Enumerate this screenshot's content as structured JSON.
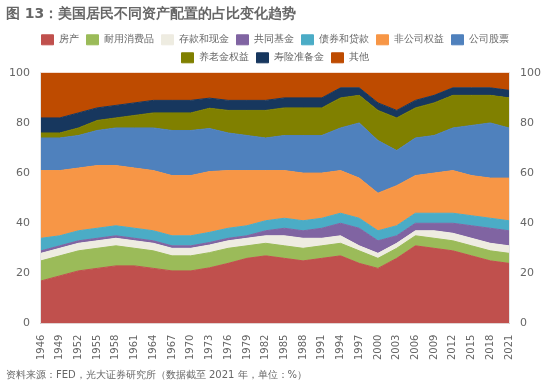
{
  "chart_data": {
    "type": "area",
    "title": "图 13：美国居民不同资产配置的占比变化趋势",
    "source": "资料来源：FED，光大证券研究所（数据截至 2021 年，单位：%）",
    "categories": [
      1946,
      1949,
      1952,
      1955,
      1958,
      1961,
      1964,
      1967,
      1970,
      1973,
      1976,
      1979,
      1982,
      1985,
      1988,
      1991,
      1994,
      1997,
      2000,
      2003,
      2006,
      2009,
      2012,
      2015,
      2018,
      2021
    ],
    "series": [
      {
        "name": "房产",
        "color": "#C0504D",
        "values": [
          17,
          19,
          21,
          22,
          23,
          23,
          22,
          21,
          21,
          22.2222,
          24,
          26,
          27,
          26,
          25,
          26,
          27,
          24,
          22,
          26,
          31,
          30,
          29,
          27,
          25,
          24
        ]
      },
      {
        "name": "耐用消费品",
        "color": "#9BBB59",
        "values": [
          8,
          8,
          8,
          8,
          8,
          7,
          7,
          6,
          6,
          6.0606,
          6,
          5,
          5,
          5,
          5,
          5,
          5,
          5,
          4,
          4,
          4,
          4,
          4,
          4,
          4,
          4
        ]
      },
      {
        "name": "存款和现金",
        "color": "#EEECE1",
        "values": [
          3,
          3,
          3,
          3,
          3,
          3,
          3,
          3,
          3,
          3.0303,
          3,
          3,
          3,
          4,
          4,
          3,
          3,
          2,
          2,
          2,
          2,
          3,
          3,
          3,
          3,
          3
        ]
      },
      {
        "name": "共同基金",
        "color": "#8064A2",
        "values": [
          1,
          1,
          1,
          1,
          1,
          1,
          1,
          1,
          1,
          1.0101,
          1,
          1,
          2,
          3,
          3,
          4,
          5,
          7,
          5,
          3,
          3,
          3,
          4,
          5,
          6,
          6
        ]
      },
      {
        "name": "债券和贷款",
        "color": "#4BACC6",
        "values": [
          5,
          4,
          4,
          4,
          4,
          4,
          4,
          4,
          4,
          4.0404,
          4,
          4,
          4,
          4,
          4,
          4,
          4,
          4,
          4,
          4,
          4,
          4,
          4,
          4,
          4,
          4
        ]
      },
      {
        "name": "非公司权益",
        "color": "#F79646",
        "values": [
          27,
          26,
          25,
          25,
          24,
          24,
          24,
          24,
          24,
          24.2424,
          23,
          22,
          20,
          19,
          19,
          18,
          17,
          16,
          15,
          16,
          15,
          16,
          17,
          16,
          16,
          17
        ]
      },
      {
        "name": "公司股票",
        "color": "#4F81BD",
        "values": [
          13,
          13,
          13,
          14,
          15,
          16,
          17,
          18,
          18,
          17.1717,
          15,
          14,
          13,
          14,
          15,
          15,
          17,
          22,
          21,
          14,
          15,
          15,
          17,
          20,
          22,
          20
        ]
      },
      {
        "name": "养老金权益",
        "color": "#808000",
        "values": [
          2,
          2,
          3,
          4,
          4,
          5,
          6,
          7,
          7,
          8.0808,
          9,
          10,
          11,
          11,
          11,
          11,
          12,
          11,
          12,
          13,
          12,
          13,
          13,
          12,
          11,
          12
        ]
      },
      {
        "name": "寿险准备金",
        "color": "#17375E",
        "values": [
          6,
          6,
          6,
          5,
          5,
          5,
          5,
          5,
          5,
          4.0404,
          4,
          4,
          4,
          4,
          4,
          4,
          4,
          3,
          3,
          3,
          3,
          3,
          3,
          3,
          3,
          3
        ]
      },
      {
        "name": "其他",
        "color": "#BE4B00",
        "values": [
          18,
          18,
          16,
          14,
          13,
          12,
          11,
          11,
          11,
          10.101,
          11,
          11,
          11,
          10,
          10,
          10,
          6,
          6,
          12,
          15,
          11,
          9,
          6,
          6,
          6,
          7
        ]
      }
    ],
    "stacked": true,
    "ylim": [
      0,
      100
    ],
    "yticks": [
      0,
      20,
      40,
      60,
      80,
      100
    ],
    "y2lim": [
      0,
      100
    ],
    "y2ticks": [
      0,
      20,
      40,
      60,
      80,
      100
    ],
    "grid": false,
    "legend": "top"
  }
}
